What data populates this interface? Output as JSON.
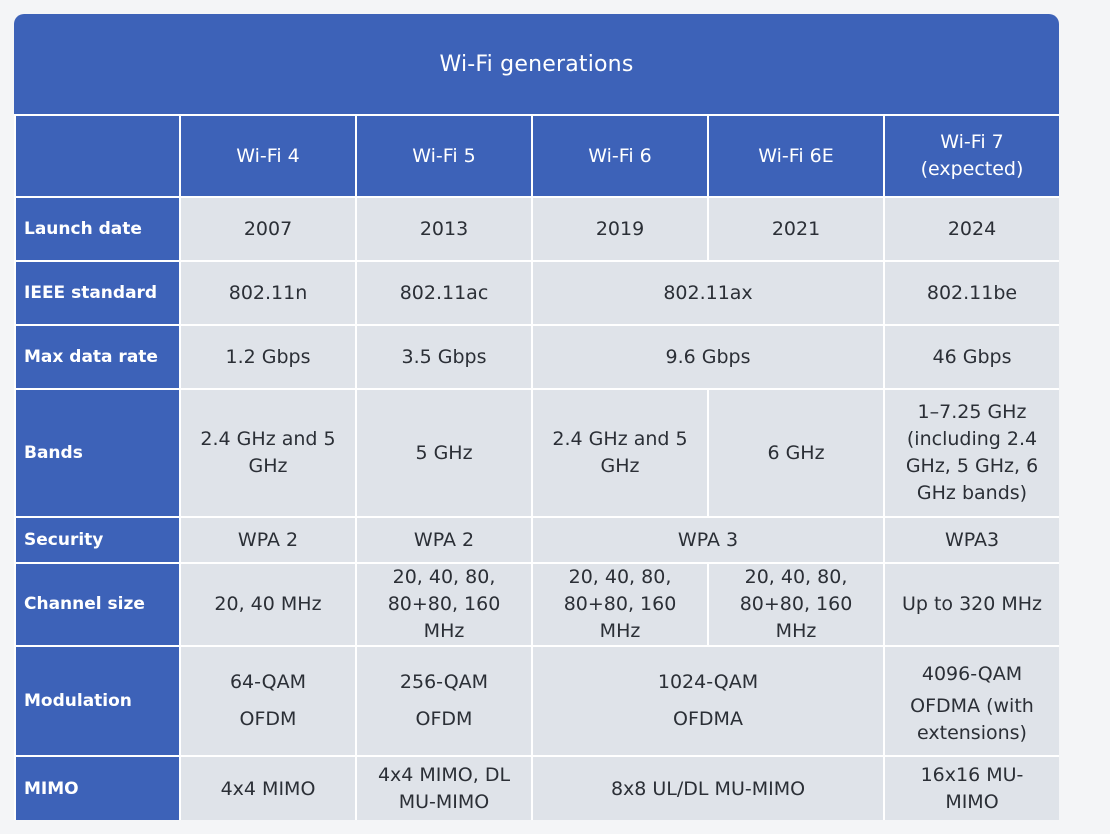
{
  "title": "Wi-Fi generations",
  "columns": [
    {
      "line1": "Wi-Fi 4",
      "line2": ""
    },
    {
      "line1": "Wi-Fi 5",
      "line2": ""
    },
    {
      "line1": "Wi-Fi 6",
      "line2": ""
    },
    {
      "line1": "Wi-Fi 6E",
      "line2": ""
    },
    {
      "line1": "Wi-Fi 7",
      "line2": "(expected)"
    }
  ],
  "rows": {
    "launch_date": {
      "label": "Launch date",
      "wifi4": "2007",
      "wifi5": "2013",
      "wifi6": "2019",
      "wifi6e": "2021",
      "wifi7": "2024"
    },
    "ieee_standard": {
      "label": "IEEE standard",
      "wifi4": "802.11n",
      "wifi5": "802.11ac",
      "wifi6_6e": "802.11ax",
      "wifi7": "802.11be"
    },
    "max_data_rate": {
      "label": "Max data rate",
      "wifi4": "1.2 Gbps",
      "wifi5": "3.5 Gbps",
      "wifi6_6e": "9.6 Gbps",
      "wifi7": "46 Gbps"
    },
    "bands": {
      "label": "Bands",
      "wifi4": [
        "2.4 GHz and 5",
        "GHz"
      ],
      "wifi5": "5 GHz",
      "wifi6": [
        "2.4 GHz and 5",
        "GHz"
      ],
      "wifi6e": "6 GHz",
      "wifi7": [
        "1–7.25 GHz",
        "(including 2.4",
        "GHz, 5 GHz, 6",
        "GHz bands)"
      ]
    },
    "security": {
      "label": "Security",
      "wifi4": "WPA 2",
      "wifi5": "WPA 2",
      "wifi6_6e": "WPA 3",
      "wifi7": "WPA3"
    },
    "channel_size": {
      "label": "Channel size",
      "wifi4": "20, 40 MHz",
      "wifi5": [
        "20, 40, 80,",
        "80+80, 160",
        "MHz"
      ],
      "wifi6": [
        "20, 40, 80,",
        "80+80, 160",
        "MHz"
      ],
      "wifi6e": [
        "20, 40, 80,",
        "80+80, 160",
        "MHz"
      ],
      "wifi7": "Up to 320 MHz"
    },
    "modulation": {
      "label": "Modulation",
      "wifi4": [
        "64-QAM",
        "OFDM"
      ],
      "wifi5": [
        "256-QAM",
        "OFDM"
      ],
      "wifi6_6e": [
        "1024-QAM",
        "OFDMA"
      ],
      "wifi7": [
        "4096-QAM",
        "OFDMA (with",
        "extensions)"
      ]
    },
    "mimo": {
      "label": "MIMO",
      "wifi4": "4x4 MIMO",
      "wifi5": [
        "4x4 MIMO, DL",
        "MU-MIMO"
      ],
      "wifi6_6e": "8x8 UL/DL MU-MIMO",
      "wifi7": [
        "16x16 MU-",
        "MIMO"
      ]
    }
  }
}
